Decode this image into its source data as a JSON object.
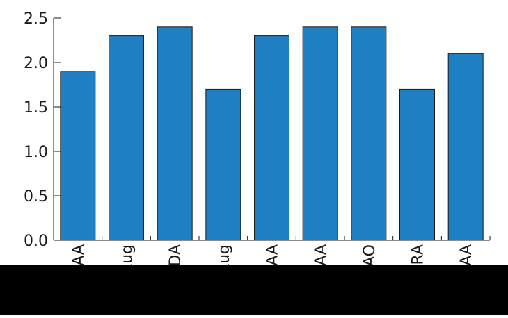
{
  "chart_data": {
    "type": "bar",
    "title": "",
    "xlabel": "",
    "ylabel": "",
    "categories": [
      "AA",
      "Aug",
      "ADA",
      "Aug",
      "tAA",
      "rAA",
      "DAO",
      "RA",
      "GAA"
    ],
    "values": [
      1.9,
      2.3,
      2.4,
      1.7,
      2.3,
      2.4,
      2.4,
      1.7,
      2.1
    ],
    "ylim": [
      0,
      2.5
    ],
    "yticks": [
      "0.0",
      "0.5",
      "1.0",
      "1.5",
      "2.0",
      "2.5"
    ],
    "ytick_values": [
      0,
      0.5,
      1.0,
      1.5,
      2.0,
      2.5
    ],
    "grid": false,
    "legend": "none",
    "bar_color": "#1f7fc3",
    "axis_color": "#1a1a1a"
  }
}
